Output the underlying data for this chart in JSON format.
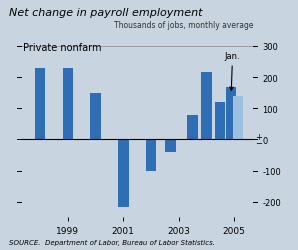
{
  "title": "Net change in payroll employment",
  "subtitle": "Thousands of jobs, monthly average",
  "label": "Private nonfarm",
  "source": "SOURCE.  Department of Labor, Bureau of Labor Statistics.",
  "bar_data": [
    {
      "year": 1998,
      "value": 230
    },
    {
      "year": 1999,
      "value": 230
    },
    {
      "year": 2000,
      "value": 150
    },
    {
      "year": 2001,
      "value": -218
    },
    {
      "year": 2002,
      "value": -100
    },
    {
      "year": 2003,
      "value": -40
    },
    {
      "year": 2003.5,
      "value": 80
    },
    {
      "year": 2004,
      "value": 215
    },
    {
      "year": 2004.5,
      "value": 120
    },
    {
      "year": 2005,
      "value": 170
    },
    {
      "year": 2005.25,
      "value": 140
    }
  ],
  "bar_color_dark": "#2F6DB5",
  "bar_color_light": "#9DBFE0",
  "bg_color": "#C8D4E0",
  "plot_bg_color": "#C8D4E0",
  "ylim": [
    -250,
    330
  ],
  "yticks": [
    -200,
    -100,
    0,
    100,
    200,
    300
  ],
  "xlim": [
    1997.3,
    2005.7
  ],
  "xticks": [
    1999,
    2001,
    2003,
    2005
  ],
  "jan_annotation": "Jan.",
  "jan_x": 2005.08,
  "jan_value": 140
}
